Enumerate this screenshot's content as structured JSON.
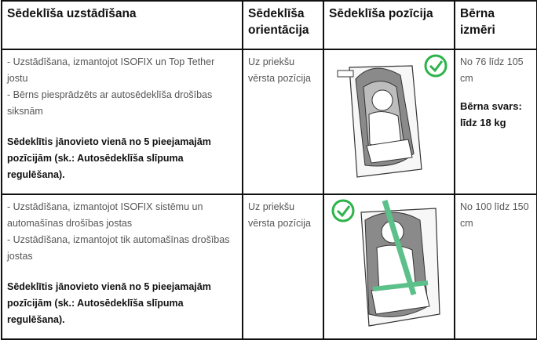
{
  "table": {
    "header": [
      "Sēdeklīša uzstādīšana",
      "Sēdeklīša orientācija",
      "Sēdeklīša pozīcija",
      "Bērna izmēri"
    ],
    "rows": [
      {
        "installation": [
          "- Uzstādīšana, izmantojot ISOFIX un Top Tether jostu",
          "- Bērns piesprādzēts ar autosēdeklīša drošības siksnām"
        ],
        "note": "Sēdeklītis jānovieto vienā no 5 pieejamajām pozīcijām (sk.: Autosēdeklīša slīpuma regulēšana).",
        "orientation": "Uz priekšu vērsta pozīcija",
        "size": "No 76 līdz 105 cm",
        "weight": "Bērna svars: līdz 18 kg"
      },
      {
        "installation": [
          "- Uzstādīšana, izmantojot ISOFIX sistēmu un automašīnas drošības jostas",
          "- Uzstādīšana, izmantojot tik automašīnas drošības jostas"
        ],
        "note": "Sēdeklītis jānovieto vienā no 5 pieejamajām pozīcijām (sk.: Autosēdeklīša slīpuma regulēšana).",
        "orientation": "Uz priekšu vērsta pozīcija",
        "size": "No 100 līdz 150 cm"
      }
    ]
  }
}
